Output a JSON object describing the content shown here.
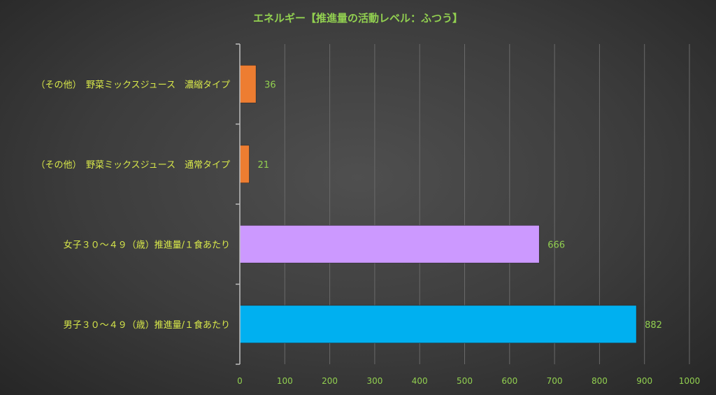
{
  "chart_data": {
    "type": "bar",
    "orientation": "horizontal",
    "title": "エネルギー【推進量の活動レベル：ふつう】",
    "categories": [
      "（その他）　野菜ミックスジュース　濃縮タイプ",
      "（その他）　野菜ミックスジュース　通常タイプ",
      "女子３０～４９（歳）推進量/１食あたり",
      "男子３０～４９（歳）推進量/１食あたり"
    ],
    "values": [
      36,
      21,
      666,
      882
    ],
    "colors": [
      "#ed7d31",
      "#ed7d31",
      "#cc99ff",
      "#00b0f0"
    ],
    "xlim": [
      0,
      1000
    ],
    "xticks": [
      0,
      100,
      200,
      300,
      400,
      500,
      600,
      700,
      800,
      900,
      1000
    ],
    "grid": true,
    "legend": "none",
    "xlabel": "",
    "ylabel": ""
  }
}
